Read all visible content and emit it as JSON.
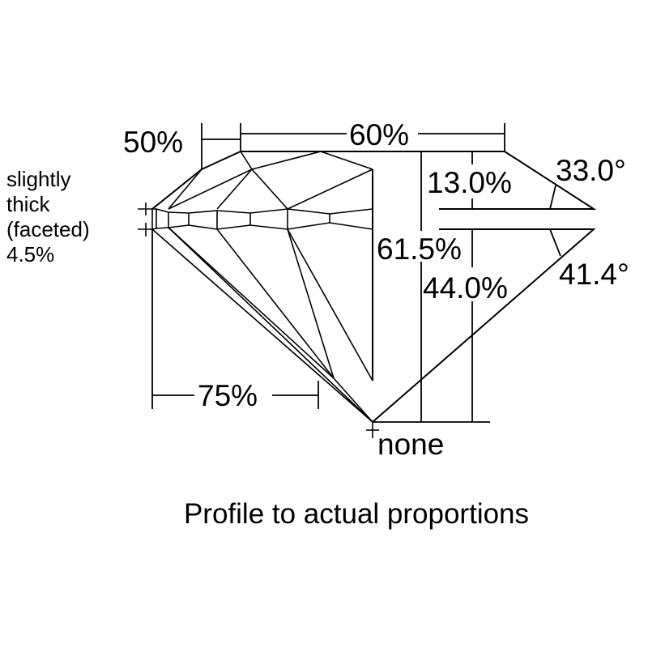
{
  "labels": {
    "table_pct": "60%",
    "star_length": "50%",
    "crown_height": "13.0%",
    "crown_angle": "33.0°",
    "total_depth": "61.5%",
    "pavilion_depth": "44.0%",
    "pavilion_angle": "41.4°",
    "lower_half": "75%",
    "culet": "none",
    "girdle_lines": [
      "slightly",
      "thick",
      "(faceted)",
      "4.5%"
    ]
  },
  "caption": "Profile to actual proportions"
}
